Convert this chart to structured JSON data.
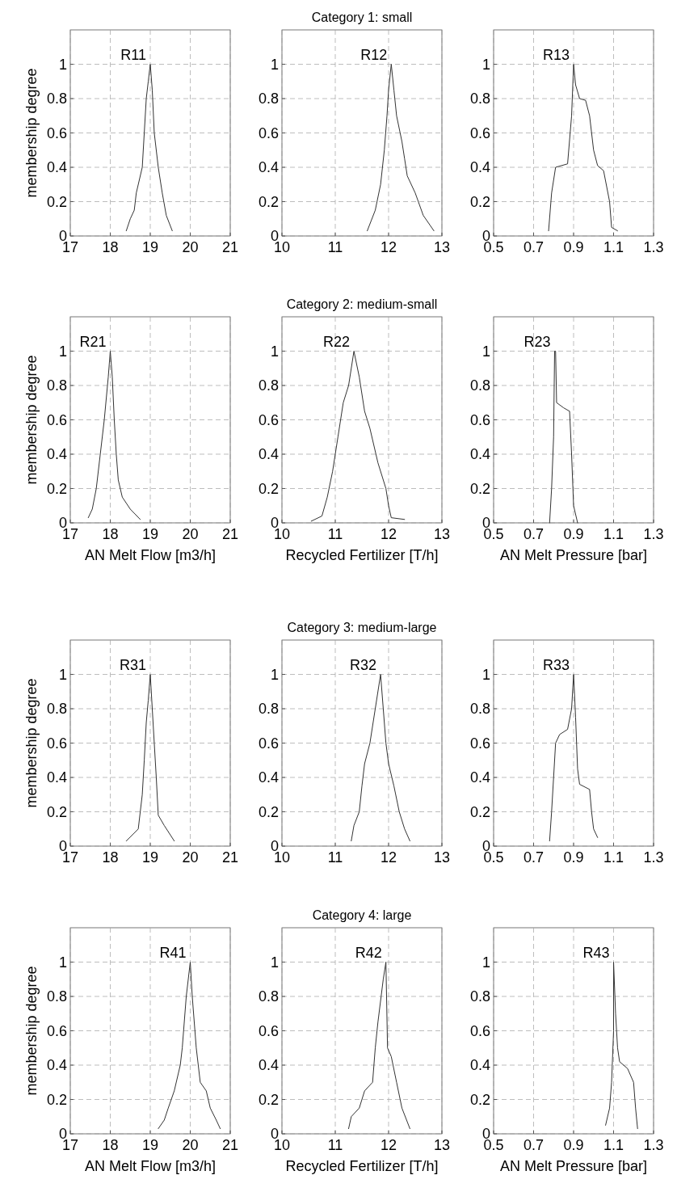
{
  "chart_data": [
    {
      "type": "line",
      "ylabel": "membership degree",
      "xlim": [
        17,
        21
      ],
      "xticks": [
        17,
        18,
        19,
        20,
        21
      ],
      "ylim": [
        0,
        1.2
      ],
      "yticks": [
        0,
        0.2,
        0.4,
        0.6,
        0.8,
        1
      ],
      "grid": true,
      "series": [
        {
          "name": "R11",
          "color": "#333333",
          "x": [
            18.4,
            18.5,
            18.6,
            18.65,
            18.8,
            18.85,
            18.9,
            18.95,
            19,
            19.05,
            19.1,
            19.2,
            19.3,
            19.4,
            19.55
          ],
          "values": [
            0.03,
            0.1,
            0.15,
            0.25,
            0.4,
            0.6,
            0.8,
            0.9,
            1,
            0.85,
            0.6,
            0.4,
            0.25,
            0.12,
            0.03
          ]
        }
      ]
    },
    {
      "type": "line",
      "title": "Category 1: small",
      "xlim": [
        10,
        13
      ],
      "xticks": [
        10,
        11,
        12,
        13
      ],
      "ylim": [
        0,
        1.2
      ],
      "yticks": [
        0,
        0.2,
        0.4,
        0.6,
        0.8,
        1
      ],
      "grid": true,
      "series": [
        {
          "name": "R12",
          "color": "#333333",
          "x": [
            11.6,
            11.75,
            11.85,
            11.92,
            11.97,
            12,
            12.05,
            12.1,
            12.15,
            12.25,
            12.3,
            12.35,
            12.5,
            12.65,
            12.85
          ],
          "values": [
            0.03,
            0.15,
            0.3,
            0.5,
            0.7,
            0.85,
            1,
            0.85,
            0.7,
            0.55,
            0.45,
            0.35,
            0.25,
            0.12,
            0.03
          ]
        }
      ]
    },
    {
      "type": "line",
      "xlim": [
        0.5,
        1.3
      ],
      "xticks": [
        0.5,
        0.7,
        0.9,
        1.1,
        1.3
      ],
      "ylim": [
        0,
        1.2
      ],
      "yticks": [
        0,
        0.2,
        0.4,
        0.6,
        0.8,
        1
      ],
      "grid": true,
      "series": [
        {
          "name": "R13",
          "color": "#333333",
          "x": [
            0.775,
            0.79,
            0.81,
            0.87,
            0.89,
            0.9,
            0.91,
            0.93,
            0.96,
            0.98,
            1,
            1.02,
            1.05,
            1.08,
            1.09,
            1.12
          ],
          "values": [
            0.03,
            0.25,
            0.4,
            0.42,
            0.7,
            1,
            0.88,
            0.8,
            0.79,
            0.7,
            0.5,
            0.41,
            0.38,
            0.2,
            0.05,
            0.03
          ]
        }
      ]
    },
    {
      "type": "line",
      "ylabel": "membership degree",
      "xlabel": "AN Melt Flow [m3/h]",
      "xlim": [
        17,
        21
      ],
      "xticks": [
        17,
        18,
        19,
        20,
        21
      ],
      "ylim": [
        0,
        1.2
      ],
      "yticks": [
        0,
        0.2,
        0.4,
        0.6,
        0.8,
        1
      ],
      "grid": true,
      "series": [
        {
          "name": "R21",
          "color": "#333333",
          "x": [
            17.45,
            17.55,
            17.65,
            17.75,
            17.85,
            17.95,
            18,
            18.05,
            18.1,
            18.15,
            18.2,
            18.3,
            18.5,
            18.75
          ],
          "values": [
            0.03,
            0.08,
            0.2,
            0.4,
            0.6,
            0.85,
            1,
            0.85,
            0.6,
            0.4,
            0.25,
            0.15,
            0.08,
            0.02
          ]
        }
      ]
    },
    {
      "type": "line",
      "title": "Category 2: medium-small",
      "xlabel": "Recycled Fertilizer [T/h]",
      "xlim": [
        10,
        13
      ],
      "xticks": [
        10,
        11,
        12,
        13
      ],
      "ylim": [
        0,
        1.2
      ],
      "yticks": [
        0,
        0.2,
        0.4,
        0.6,
        0.8,
        1
      ],
      "grid": true,
      "series": [
        {
          "name": "R22",
          "color": "#333333",
          "x": [
            10.55,
            10.75,
            10.85,
            10.95,
            11.05,
            11.15,
            11.25,
            11.35,
            11.45,
            11.55,
            11.65,
            11.8,
            11.95,
            12,
            12.05,
            12.3
          ],
          "values": [
            0.01,
            0.04,
            0.15,
            0.3,
            0.5,
            0.7,
            0.8,
            1,
            0.85,
            0.65,
            0.55,
            0.35,
            0.2,
            0.1,
            0.03,
            0.02
          ]
        }
      ]
    },
    {
      "type": "line",
      "xlabel": "AN Melt Pressure [bar]",
      "xlim": [
        0.5,
        1.3
      ],
      "xticks": [
        0.5,
        0.7,
        0.9,
        1.1,
        1.3
      ],
      "ylim": [
        0,
        1.2
      ],
      "yticks": [
        0,
        0.2,
        0.4,
        0.6,
        0.8,
        1
      ],
      "grid": true,
      "series": [
        {
          "name": "R23",
          "color": "#333333",
          "x": [
            0.78,
            0.79,
            0.8,
            0.805,
            0.81,
            0.815,
            0.85,
            0.88,
            0.89,
            0.9,
            0.92
          ],
          "values": [
            0,
            0.2,
            0.5,
            1,
            1,
            0.7,
            0.67,
            0.65,
            0.4,
            0.1,
            0
          ]
        }
      ]
    },
    {
      "type": "line",
      "ylabel": "membership degree",
      "xlim": [
        17,
        21
      ],
      "xticks": [
        17,
        18,
        19,
        20,
        21
      ],
      "ylim": [
        0,
        1.2
      ],
      "yticks": [
        0,
        0.2,
        0.4,
        0.6,
        0.8,
        1
      ],
      "grid": true,
      "series": [
        {
          "name": "R31",
          "color": "#333333",
          "x": [
            18.4,
            18.7,
            18.8,
            18.85,
            18.9,
            18.95,
            19,
            19.05,
            19.1,
            19.15,
            19.2,
            19.35,
            19.6
          ],
          "values": [
            0.03,
            0.1,
            0.3,
            0.5,
            0.72,
            0.85,
            1,
            0.8,
            0.6,
            0.4,
            0.18,
            0.12,
            0.03
          ]
        }
      ]
    },
    {
      "type": "line",
      "title": "Category 3: medium-large",
      "xlim": [
        10,
        13
      ],
      "xticks": [
        10,
        11,
        12,
        13
      ],
      "ylim": [
        0,
        1.2
      ],
      "yticks": [
        0,
        0.2,
        0.4,
        0.6,
        0.8,
        1
      ],
      "grid": true,
      "series": [
        {
          "name": "R32",
          "color": "#333333",
          "x": [
            11.3,
            11.35,
            11.45,
            11.5,
            11.55,
            11.65,
            11.75,
            11.85,
            11.9,
            11.95,
            12,
            12.1,
            12.2,
            12.3,
            12.4
          ],
          "values": [
            0.03,
            0.12,
            0.2,
            0.35,
            0.48,
            0.6,
            0.8,
            1,
            0.8,
            0.6,
            0.48,
            0.35,
            0.2,
            0.1,
            0.03
          ]
        }
      ]
    },
    {
      "type": "line",
      "xlim": [
        0.5,
        1.3
      ],
      "xticks": [
        0.5,
        0.7,
        0.9,
        1.1,
        1.3
      ],
      "ylim": [
        0,
        1.2
      ],
      "yticks": [
        0,
        0.2,
        0.4,
        0.6,
        0.8,
        1
      ],
      "grid": true,
      "series": [
        {
          "name": "R33",
          "color": "#333333",
          "x": [
            0.78,
            0.79,
            0.8,
            0.81,
            0.83,
            0.87,
            0.89,
            0.9,
            0.91,
            0.92,
            0.93,
            0.98,
            0.99,
            1,
            1.02
          ],
          "values": [
            0.03,
            0.2,
            0.4,
            0.6,
            0.65,
            0.68,
            0.8,
            1,
            0.75,
            0.45,
            0.36,
            0.33,
            0.2,
            0.1,
            0.05
          ]
        }
      ]
    },
    {
      "type": "line",
      "ylabel": "membership degree",
      "xlabel": "AN Melt Flow [m3/h]",
      "xlim": [
        17,
        21
      ],
      "xticks": [
        17,
        18,
        19,
        20,
        21
      ],
      "ylim": [
        0,
        1.2
      ],
      "yticks": [
        0,
        0.2,
        0.4,
        0.6,
        0.8,
        1
      ],
      "grid": true,
      "series": [
        {
          "name": "R41",
          "color": "#333333",
          "x": [
            19.2,
            19.35,
            19.45,
            19.6,
            19.75,
            19.8,
            19.9,
            20,
            20.05,
            20.15,
            20.25,
            20.4,
            20.5,
            20.65,
            20.75
          ],
          "values": [
            0.03,
            0.08,
            0.15,
            0.25,
            0.4,
            0.5,
            0.8,
            1,
            0.8,
            0.5,
            0.3,
            0.25,
            0.15,
            0.08,
            0.03
          ]
        }
      ]
    },
    {
      "type": "line",
      "title": "Category 4: large",
      "xlabel": "Recycled Fertilizer [T/h]",
      "xlim": [
        10,
        13
      ],
      "xticks": [
        10,
        11,
        12,
        13
      ],
      "ylim": [
        0,
        1.2
      ],
      "yticks": [
        0,
        0.2,
        0.4,
        0.6,
        0.8,
        1
      ],
      "grid": true,
      "series": [
        {
          "name": "R42",
          "color": "#333333",
          "x": [
            11.25,
            11.3,
            11.45,
            11.55,
            11.7,
            11.75,
            11.8,
            11.9,
            11.95,
            11.98,
            12.05,
            12.15,
            12.25,
            12.4
          ],
          "values": [
            0.03,
            0.1,
            0.15,
            0.25,
            0.3,
            0.5,
            0.65,
            0.9,
            1,
            0.5,
            0.45,
            0.3,
            0.15,
            0.03
          ]
        }
      ]
    },
    {
      "type": "line",
      "xlabel": "AN Melt Pressure [bar]",
      "xlim": [
        0.5,
        1.3
      ],
      "xticks": [
        0.5,
        0.7,
        0.9,
        1.1,
        1.3
      ],
      "ylim": [
        0,
        1.2
      ],
      "yticks": [
        0,
        0.2,
        0.4,
        0.6,
        0.8,
        1
      ],
      "grid": true,
      "series": [
        {
          "name": "R43",
          "color": "#333333",
          "x": [
            1.06,
            1.08,
            1.09,
            1.1,
            1.1,
            1.11,
            1.12,
            1.13,
            1.17,
            1.2,
            1.21,
            1.22
          ],
          "values": [
            0.05,
            0.15,
            0.3,
            0.6,
            1,
            0.7,
            0.5,
            0.42,
            0.38,
            0.3,
            0.15,
            0.03
          ]
        }
      ]
    }
  ]
}
